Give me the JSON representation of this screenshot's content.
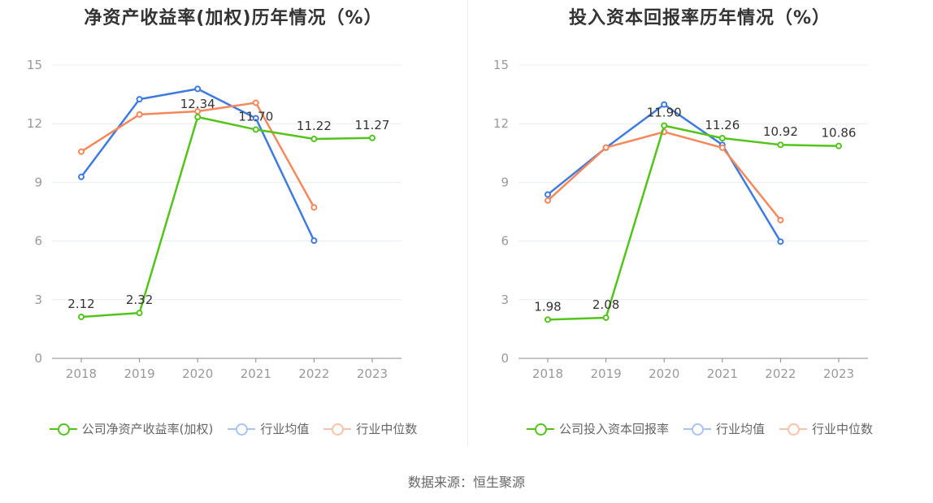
{
  "source_text": "数据来源：恒生聚源",
  "chart_data": [
    {
      "type": "line",
      "title": "净资产收益率(加权)历年情况（%）",
      "categories": [
        "2018",
        "2019",
        "2020",
        "2021",
        "2022",
        "2023"
      ],
      "ylim": [
        0,
        15
      ],
      "yticks": [
        0,
        3,
        6,
        9,
        12,
        15
      ],
      "grid": true,
      "legend_position": "bottom",
      "series": [
        {
          "name": "公司净资产收益率(加权)",
          "color": "#52c41a",
          "values": [
            2.12,
            2.32,
            12.34,
            11.7,
            11.22,
            11.27
          ],
          "labels": [
            "2.12",
            "2.32",
            "12.34",
            "11.70",
            "11.22",
            "11.27"
          ],
          "faded": false
        },
        {
          "name": "行业均值",
          "color": "#3f7bdf",
          "values": [
            9.28,
            13.25,
            13.78,
            12.28,
            6.02,
            null
          ],
          "faded": true
        },
        {
          "name": "行业中位数",
          "color": "#f5875a",
          "values": [
            10.57,
            12.47,
            12.63,
            13.07,
            7.72,
            null
          ],
          "faded": true
        }
      ]
    },
    {
      "type": "line",
      "title": "投入资本回报率历年情况（%）",
      "categories": [
        "2018",
        "2019",
        "2020",
        "2021",
        "2022",
        "2023"
      ],
      "ylim": [
        0,
        15
      ],
      "yticks": [
        0,
        3,
        6,
        9,
        12,
        15
      ],
      "grid": true,
      "legend_position": "bottom",
      "series": [
        {
          "name": "公司投入资本回报率",
          "color": "#52c41a",
          "values": [
            1.98,
            2.08,
            11.9,
            11.26,
            10.92,
            10.86
          ],
          "labels": [
            "1.98",
            "2.08",
            "11.90",
            "11.26",
            "10.92",
            "10.86"
          ],
          "faded": false
        },
        {
          "name": "行业均值",
          "color": "#3f7bdf",
          "values": [
            8.38,
            10.77,
            12.98,
            10.92,
            5.97,
            null
          ],
          "faded": true
        },
        {
          "name": "行业中位数",
          "color": "#f5875a",
          "values": [
            8.07,
            10.78,
            11.58,
            10.77,
            7.07,
            null
          ],
          "faded": true
        }
      ]
    }
  ]
}
